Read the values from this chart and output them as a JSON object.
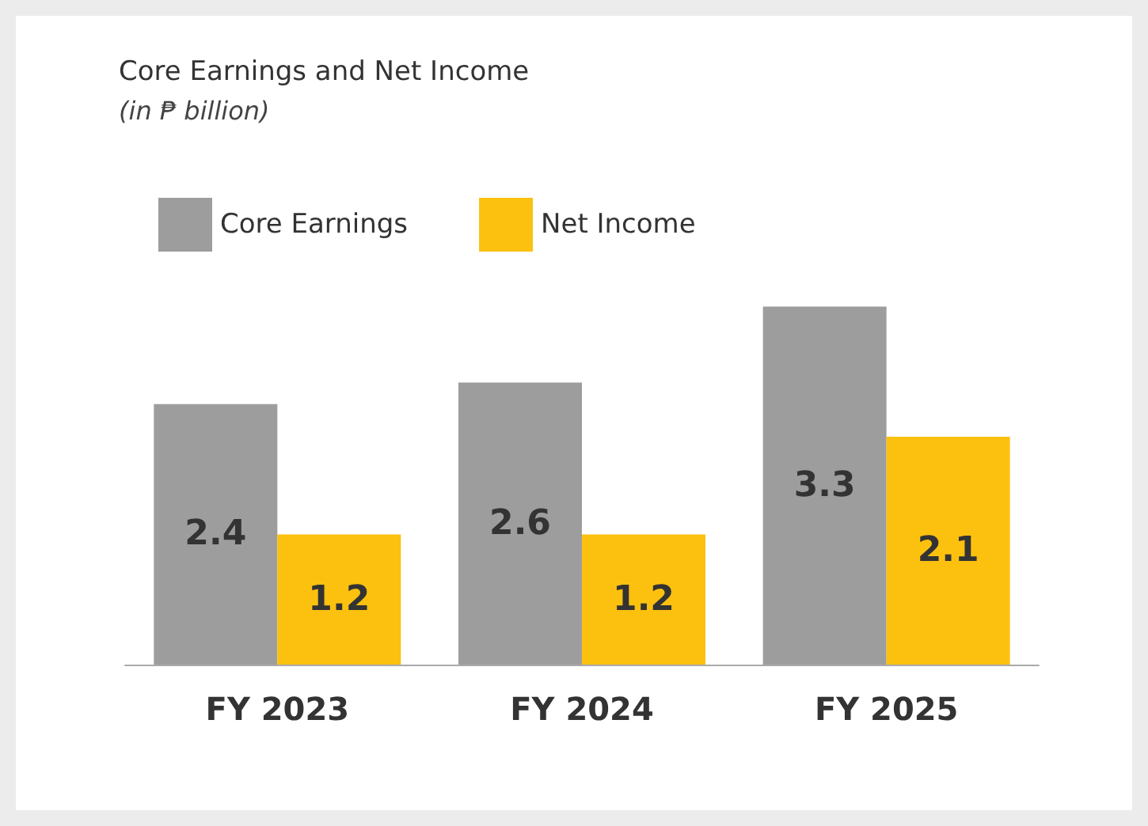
{
  "chart_data": {
    "type": "bar",
    "title": "Core Earnings and Net Income",
    "subtitle": "(in ₱ billion)",
    "categories": [
      "FY 2023",
      "FY 2024",
      "FY 2025"
    ],
    "series": [
      {
        "name": "Core Earnings",
        "color": "#9d9d9d",
        "values": [
          2.4,
          2.6,
          3.3
        ]
      },
      {
        "name": "Net Income",
        "color": "#fcc10f",
        "values": [
          1.2,
          1.2,
          2.1
        ]
      }
    ],
    "data_labels": true,
    "legend": "top left"
  }
}
